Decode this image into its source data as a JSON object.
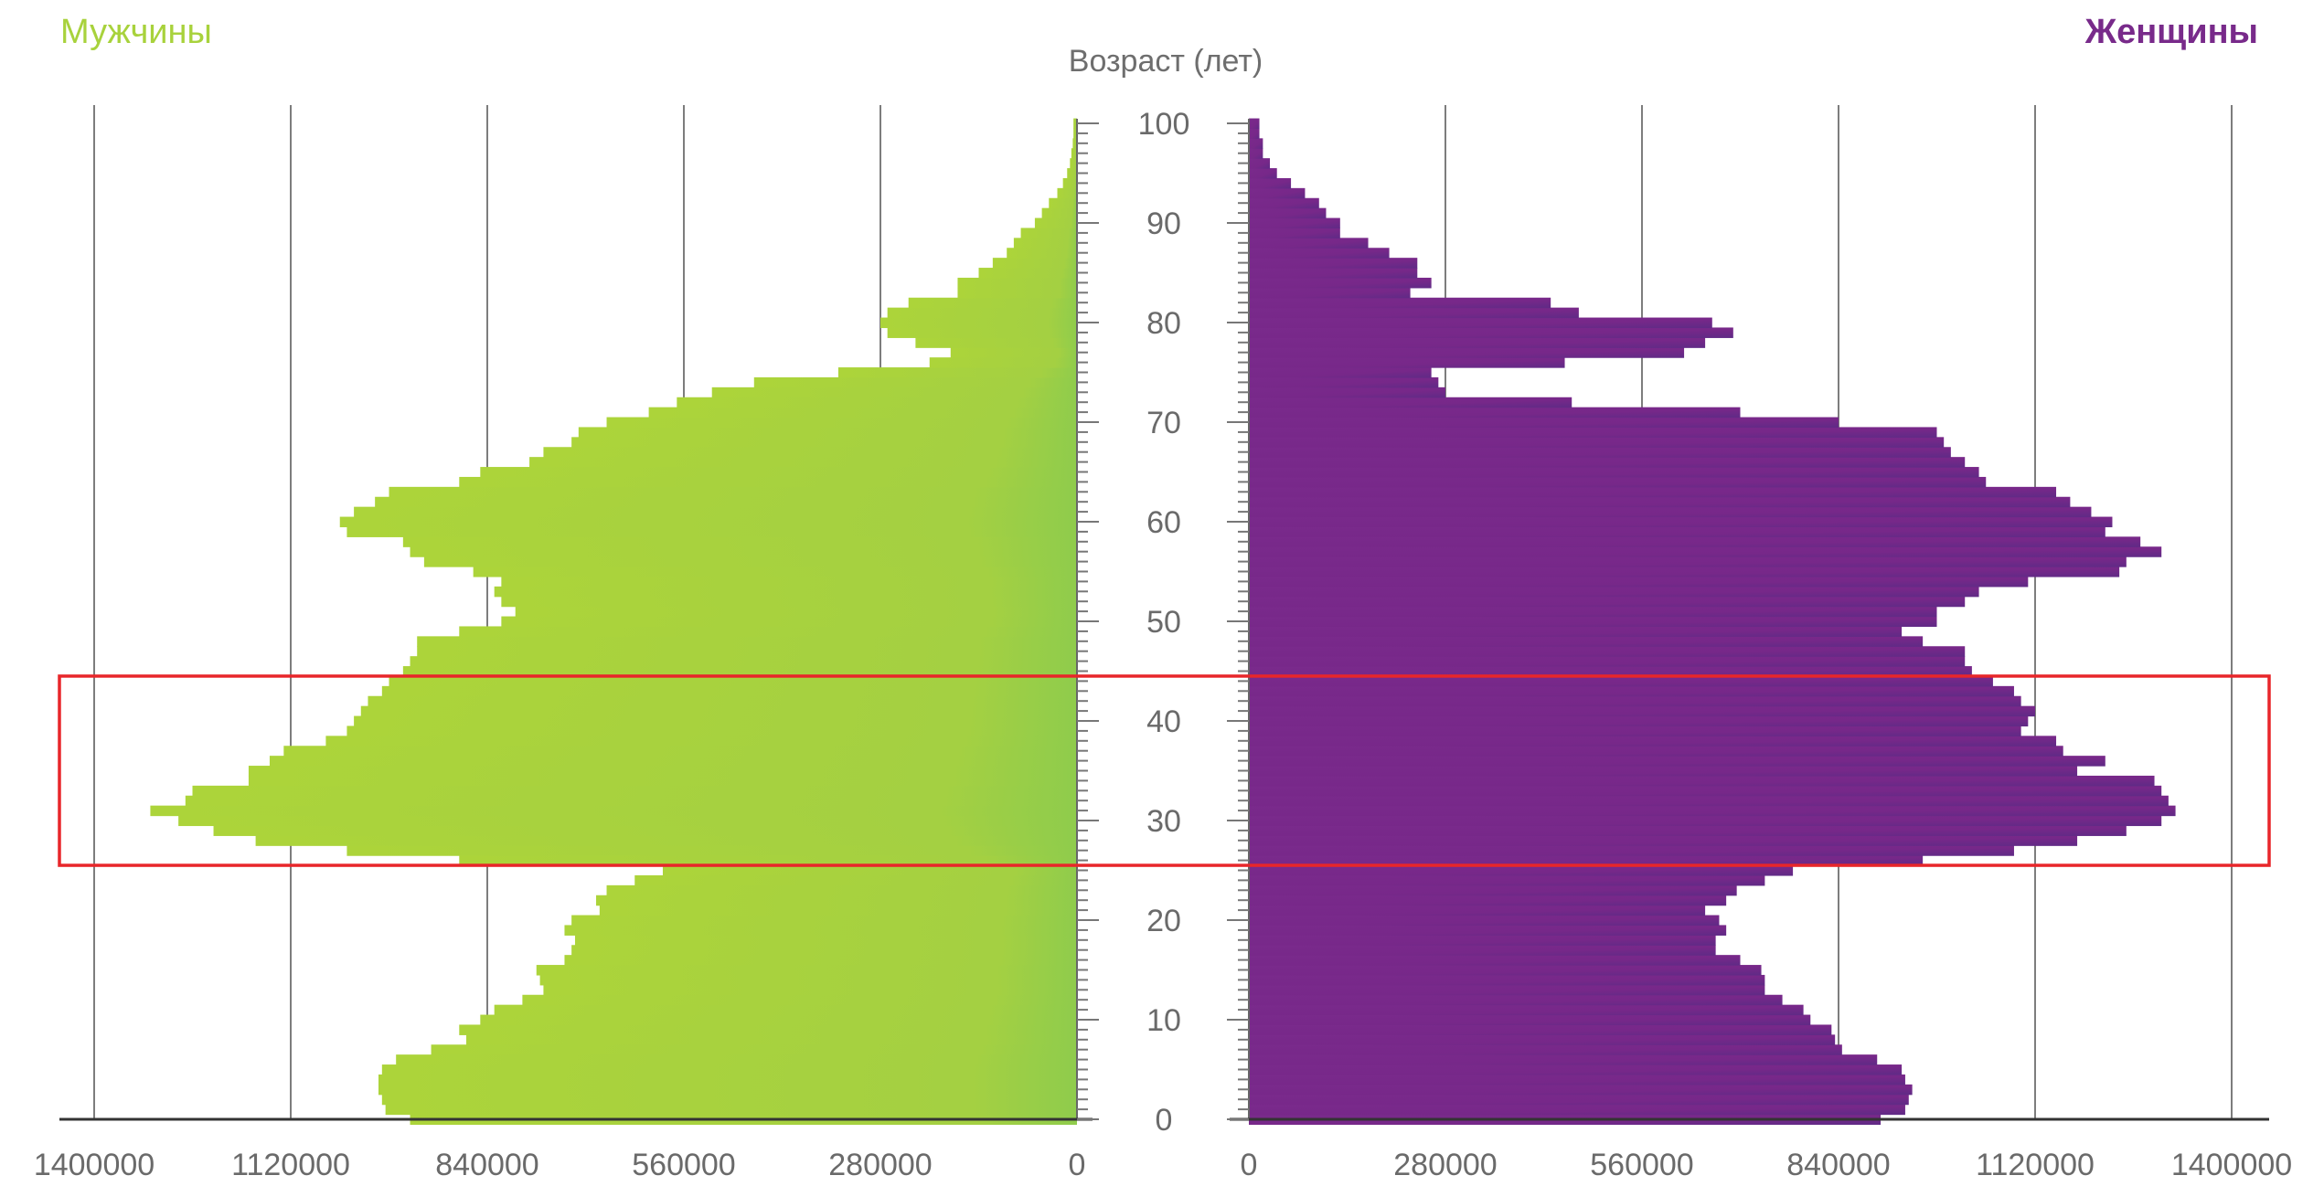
{
  "chart_data": {
    "type": "bar",
    "orientation": "horizontal",
    "layout": "population-pyramid",
    "y_axis_title": "Возраст (лет)",
    "age_ticks": [
      "0",
      "10",
      "20",
      "30",
      "40",
      "50",
      "60",
      "70",
      "80",
      "90",
      "100"
    ],
    "x_ticks_left": [
      "1400000",
      "1120000",
      "840000",
      "560000",
      "280000",
      "0"
    ],
    "x_ticks_right": [
      "0",
      "280000",
      "560000",
      "840000",
      "1120000",
      "1400000"
    ],
    "xlim": [
      0,
      1400000
    ],
    "ylim": [
      0,
      100
    ],
    "grid": true,
    "highlight": {
      "age_from": 25,
      "age_to": 44,
      "color": "#e8262a"
    },
    "series": [
      {
        "name": "Мужчины",
        "side": "left",
        "color": "#a8d23c",
        "ages": [
          0,
          1,
          2,
          3,
          4,
          5,
          6,
          7,
          8,
          9,
          10,
          11,
          12,
          13,
          14,
          15,
          16,
          17,
          18,
          19,
          20,
          21,
          22,
          23,
          24,
          25,
          26,
          27,
          28,
          29,
          30,
          31,
          32,
          33,
          34,
          35,
          36,
          37,
          38,
          39,
          40,
          41,
          42,
          43,
          44,
          45,
          46,
          47,
          48,
          49,
          50,
          51,
          52,
          53,
          54,
          55,
          56,
          57,
          58,
          59,
          60,
          61,
          62,
          63,
          64,
          65,
          66,
          67,
          68,
          69,
          70,
          71,
          72,
          73,
          74,
          75,
          76,
          77,
          78,
          79,
          80,
          81,
          82,
          83,
          84,
          85,
          86,
          87,
          88,
          89,
          90,
          91,
          92,
          93,
          94,
          95,
          96,
          97,
          98,
          99,
          100
        ],
        "values": [
          950000,
          985000,
          990000,
          995000,
          995000,
          990000,
          970000,
          920000,
          870000,
          880000,
          850000,
          830000,
          790000,
          760000,
          765000,
          770000,
          730000,
          720000,
          715000,
          730000,
          720000,
          680000,
          685000,
          670000,
          630000,
          590000,
          880000,
          1040000,
          1170000,
          1230000,
          1280000,
          1320000,
          1270000,
          1260000,
          1180000,
          1180000,
          1150000,
          1130000,
          1070000,
          1040000,
          1030000,
          1020000,
          1010000,
          990000,
          980000,
          960000,
          950000,
          940000,
          940000,
          880000,
          820000,
          800000,
          820000,
          830000,
          820000,
          860000,
          930000,
          950000,
          960000,
          1040000,
          1050000,
          1030000,
          1000000,
          980000,
          880000,
          850000,
          780000,
          760000,
          720000,
          710000,
          670000,
          610000,
          570000,
          520000,
          460000,
          340000,
          210000,
          180000,
          230000,
          270000,
          280000,
          270000,
          240000,
          170000,
          170000,
          140000,
          120000,
          100000,
          90000,
          80000,
          60000,
          50000,
          40000,
          28000,
          20000,
          14000,
          10000,
          8000,
          6000,
          5000,
          5000
        ]
      },
      {
        "name": "Женщины",
        "side": "right",
        "color": "#782a8a",
        "ages": [
          0,
          1,
          2,
          3,
          4,
          5,
          6,
          7,
          8,
          9,
          10,
          11,
          12,
          13,
          14,
          15,
          16,
          17,
          18,
          19,
          20,
          21,
          22,
          23,
          24,
          25,
          26,
          27,
          28,
          29,
          30,
          31,
          32,
          33,
          34,
          35,
          36,
          37,
          38,
          39,
          40,
          41,
          42,
          43,
          44,
          45,
          46,
          47,
          48,
          49,
          50,
          51,
          52,
          53,
          54,
          55,
          56,
          57,
          58,
          59,
          60,
          61,
          62,
          63,
          64,
          65,
          66,
          67,
          68,
          69,
          70,
          71,
          72,
          73,
          74,
          75,
          76,
          77,
          78,
          79,
          80,
          81,
          82,
          83,
          84,
          85,
          86,
          87,
          88,
          89,
          90,
          91,
          92,
          93,
          94,
          95,
          96,
          97,
          98,
          99,
          100
        ],
        "values": [
          900000,
          935000,
          940000,
          945000,
          935000,
          930000,
          895000,
          845000,
          835000,
          830000,
          800000,
          790000,
          760000,
          735000,
          735000,
          730000,
          700000,
          665000,
          665000,
          680000,
          670000,
          650000,
          680000,
          695000,
          735000,
          775000,
          960000,
          1090000,
          1180000,
          1250000,
          1300000,
          1320000,
          1310000,
          1300000,
          1290000,
          1180000,
          1220000,
          1160000,
          1150000,
          1100000,
          1110000,
          1120000,
          1100000,
          1090000,
          1060000,
          1030000,
          1020000,
          1020000,
          960000,
          930000,
          980000,
          980000,
          1020000,
          1040000,
          1110000,
          1240000,
          1250000,
          1300000,
          1270000,
          1220000,
          1230000,
          1200000,
          1170000,
          1150000,
          1050000,
          1040000,
          1020000,
          1000000,
          990000,
          980000,
          840000,
          700000,
          460000,
          280000,
          270000,
          260000,
          450000,
          620000,
          650000,
          690000,
          660000,
          470000,
          430000,
          230000,
          260000,
          240000,
          240000,
          200000,
          170000,
          130000,
          130000,
          110000,
          100000,
          80000,
          60000,
          40000,
          30000,
          20000,
          20000,
          15000,
          15000
        ]
      }
    ]
  }
}
